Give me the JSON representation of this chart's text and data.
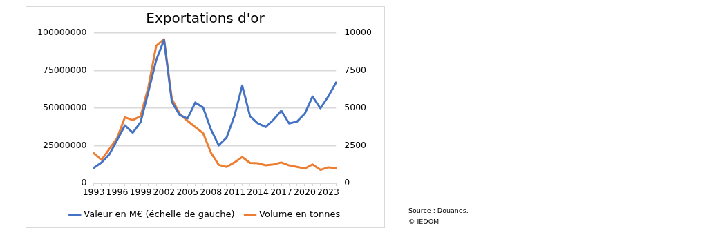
{
  "chart_data": {
    "type": "line",
    "title": "Exportations d'or",
    "categories": [
      "1993",
      null,
      null,
      "1996",
      null,
      null,
      "1999",
      null,
      null,
      "2002",
      null,
      null,
      "2005",
      null,
      null,
      "2008",
      null,
      null,
      "2011",
      null,
      null,
      "2014",
      null,
      null,
      "2017",
      null,
      null,
      "2020",
      null,
      null,
      "2023",
      null
    ],
    "series": [
      {
        "name": "Valeur en M€ (échelle de gauche)",
        "color": "#4472c4",
        "values": [
          10200000,
          13800000,
          19200000,
          28800000,
          38500000,
          33700000,
          40700000,
          61000000,
          82000000,
          95400000,
          54100000,
          45500000,
          43100000,
          53700000,
          50400000,
          35800000,
          25200000,
          30400000,
          44700000,
          65000000,
          44700000,
          39800000,
          37400000,
          42300000,
          48300000,
          39800000,
          41000000,
          46300000,
          57700000,
          49900000,
          57700000,
          67000000
        ]
      },
      {
        "name": "Volume en tonnes",
        "color": "#ed7d31",
        "axis": "y2",
        "values": [
          2000,
          1550,
          2280,
          3010,
          4390,
          4200,
          4470,
          6420,
          9150,
          9590,
          5610,
          4630,
          4150,
          3740,
          3330,
          2030,
          1220,
          1090,
          1380,
          1740,
          1350,
          1330,
          1190,
          1250,
          1380,
          1190,
          1090,
          980,
          1250,
          890,
          1060,
          1010
        ]
      }
    ],
    "ylim": [
      0,
      100000000
    ],
    "yticks": [
      0,
      25000000,
      50000000,
      75000000,
      100000000
    ],
    "y2lim": [
      0,
      10000
    ],
    "y2ticks": [
      0,
      2500,
      5000,
      7500,
      10000
    ],
    "grid": "y",
    "legend": "bottom",
    "marker": "none",
    "line_style": "solid",
    "annotations": [
      "Source : Douanes.",
      "© IEDOM"
    ]
  }
}
